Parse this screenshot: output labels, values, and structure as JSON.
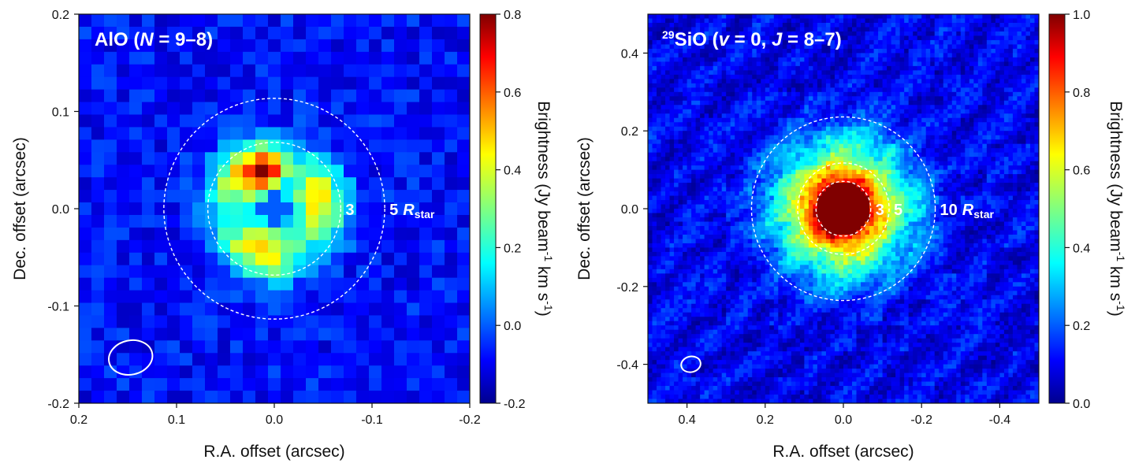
{
  "chart_data": [
    {
      "type": "heatmap",
      "id": "alo",
      "title_mol": "AlO",
      "title_open": " (",
      "title_var": "N",
      "title_eq": " = 9–8)",
      "xlabel": "R.A. offset (arcsec)",
      "ylabel": "Dec. offset (arcsec)",
      "xlim": [
        0.2,
        -0.2
      ],
      "ylim": [
        -0.2,
        0.2
      ],
      "xticks": [
        0.2,
        0.1,
        0.0,
        -0.1,
        -0.2
      ],
      "yticks": [
        -0.2,
        -0.1,
        0.0,
        0.1,
        0.2
      ],
      "xtick_labels": [
        "0.2",
        "0.1",
        "0.0",
        "-0.1",
        "-0.2"
      ],
      "ytick_labels": [
        "-0.2",
        "-0.1",
        "0.0",
        "0.1",
        "0.2"
      ],
      "colorbar": {
        "range": [
          -0.2,
          0.8
        ],
        "ticks": [
          -0.2,
          0.0,
          0.2,
          0.4,
          0.6,
          0.8
        ],
        "tick_labels": [
          "-0.2",
          "0.0",
          "0.2",
          "0.4",
          "0.6",
          "0.8"
        ],
        "label_a": "Brightness (Jy beam",
        "label_sup1": "-1",
        "label_b": " km s",
        "label_sup2": "-1",
        "label_c": ")"
      },
      "center_peak_value": 0.8,
      "background_value": -0.08,
      "ring_radius_arcsec": 0.045,
      "rings": [
        {
          "label": "3",
          "radius_arcsec": 0.068
        },
        {
          "label": "5",
          "radius_arcsec": 0.113
        }
      ],
      "ring_units": {
        "r": "R",
        "sub": "star"
      },
      "beam": {
        "x": 0.147,
        "y": -0.153,
        "major_arcsec": 0.036,
        "minor_arcsec": 0.028
      }
    },
    {
      "type": "heatmap",
      "id": "sio",
      "title_sup": "29",
      "title_mol": "SiO",
      "title_open": " (",
      "title_var": "v",
      "title_mid": " = 0, ",
      "title_var2": "J",
      "title_eq": " = 8–7)",
      "xlabel": "R.A. offset (arcsec)",
      "ylabel": "Dec. offset (arcsec)",
      "xlim": [
        0.5,
        -0.5
      ],
      "ylim": [
        -0.5,
        0.5
      ],
      "xticks": [
        0.4,
        0.2,
        0.0,
        -0.2,
        -0.4
      ],
      "yticks": [
        -0.4,
        -0.2,
        0.0,
        0.2,
        0.4
      ],
      "xtick_labels": [
        "0.4",
        "0.2",
        "0.0",
        "-0.2",
        "-0.4"
      ],
      "ytick_labels": [
        "-0.4",
        "-0.2",
        "0.0",
        "0.2",
        "0.4"
      ],
      "colorbar": {
        "range": [
          0.0,
          1.0
        ],
        "ticks": [
          0.0,
          0.2,
          0.4,
          0.6,
          0.8,
          1.0
        ],
        "tick_labels": [
          "0.0",
          "0.2",
          "0.4",
          "0.6",
          "0.8",
          "1.0"
        ],
        "label_a": "Brightness (Jy beam",
        "label_sup1": "-1",
        "label_b": " km s",
        "label_sup2": "-1",
        "label_c": ")"
      },
      "center_peak_value": 1.0,
      "background_value": 0.1,
      "rings": [
        {
          "label": "3",
          "radius_arcsec": 0.07
        },
        {
          "label": "5",
          "radius_arcsec": 0.117
        },
        {
          "label": "10",
          "radius_arcsec": 0.235
        }
      ],
      "ring_units": {
        "r": "R",
        "sub": "star"
      },
      "beam": {
        "x": 0.39,
        "y": -0.4,
        "major_arcsec": 0.04,
        "minor_arcsec": 0.032
      }
    }
  ]
}
